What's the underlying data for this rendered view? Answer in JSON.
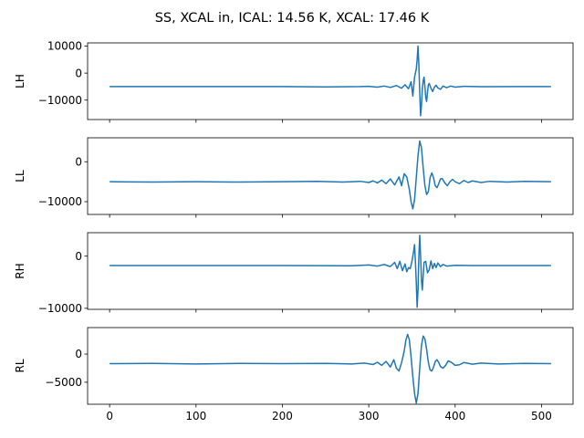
{
  "title": "SS, XCAL in, ICAL: 14.56 K, XCAL: 17.46 K",
  "colors": {
    "line": "#1f77b4",
    "axes": "#000000",
    "background": "#ffffff"
  },
  "chart_data": [
    {
      "type": "line",
      "ylabel": "LH",
      "x_range": [
        0,
        511
      ],
      "xticks": [
        0,
        100,
        200,
        300,
        400,
        500
      ],
      "ylim": [
        -17200,
        11200
      ],
      "yticks": [
        -10000,
        0,
        10000
      ],
      "ytick_labels": [
        "−10000",
        "0",
        "10000"
      ],
      "xtick_labels_shown": false,
      "series": [
        {
          "baseline": -5000,
          "envelope_center": 358,
          "points": [
            [
              0,
              -5000
            ],
            [
              100,
              -5000
            ],
            [
              200,
              -5000
            ],
            [
              250,
              -5100
            ],
            [
              290,
              -5000
            ],
            [
              300,
              -4900
            ],
            [
              310,
              -5200
            ],
            [
              318,
              -4800
            ],
            [
              325,
              -5300
            ],
            [
              332,
              -4600
            ],
            [
              338,
              -5600
            ],
            [
              342,
              -4300
            ],
            [
              346,
              -5800
            ],
            [
              349,
              -3200
            ],
            [
              351,
              -8500
            ],
            [
              353,
              -1500
            ],
            [
              355,
              1500
            ],
            [
              356,
              5000
            ],
            [
              357,
              10000
            ],
            [
              358,
              3000
            ],
            [
              359,
              -7000
            ],
            [
              360,
              -15800
            ],
            [
              361,
              -12000
            ],
            [
              362,
              -6000
            ],
            [
              363,
              -2800
            ],
            [
              364,
              -1500
            ],
            [
              365,
              -5000
            ],
            [
              366,
              -9000
            ],
            [
              367,
              -10500
            ],
            [
              368,
              -7000
            ],
            [
              369,
              -4300
            ],
            [
              370,
              -3800
            ],
            [
              372,
              -5600
            ],
            [
              374,
              -6800
            ],
            [
              376,
              -5200
            ],
            [
              378,
              -4500
            ],
            [
              380,
              -5500
            ],
            [
              383,
              -6000
            ],
            [
              386,
              -4800
            ],
            [
              390,
              -5400
            ],
            [
              395,
              -4800
            ],
            [
              400,
              -5200
            ],
            [
              410,
              -4900
            ],
            [
              430,
              -5050
            ],
            [
              470,
              -5000
            ],
            [
              511,
              -5000
            ]
          ]
        }
      ]
    },
    {
      "type": "line",
      "ylabel": "LL",
      "x_range": [
        0,
        511
      ],
      "xticks": [
        0,
        100,
        200,
        300,
        400,
        500
      ],
      "ylim": [
        -13200,
        6000
      ],
      "yticks": [
        -10000,
        0
      ],
      "ytick_labels": [
        "−10000",
        "0"
      ],
      "xtick_labels_shown": false,
      "series": [
        {
          "baseline": -5000,
          "envelope_center": 358,
          "points": [
            [
              0,
              -5000
            ],
            [
              50,
              -5100
            ],
            [
              100,
              -5000
            ],
            [
              150,
              -5100
            ],
            [
              200,
              -5000
            ],
            [
              240,
              -4900
            ],
            [
              270,
              -5100
            ],
            [
              290,
              -4900
            ],
            [
              300,
              -5200
            ],
            [
              305,
              -4800
            ],
            [
              310,
              -5300
            ],
            [
              315,
              -4600
            ],
            [
              320,
              -5500
            ],
            [
              325,
              -4300
            ],
            [
              330,
              -5800
            ],
            [
              335,
              -3800
            ],
            [
              338,
              -6000
            ],
            [
              341,
              -3000
            ],
            [
              344,
              -3800
            ],
            [
              347,
              -7000
            ],
            [
              349,
              -10000
            ],
            [
              351,
              -11800
            ],
            [
              353,
              -9500
            ],
            [
              355,
              -4000
            ],
            [
              357,
              1500
            ],
            [
              359,
              5200
            ],
            [
              361,
              3500
            ],
            [
              363,
              -1500
            ],
            [
              365,
              -6000
            ],
            [
              367,
              -8200
            ],
            [
              369,
              -7500
            ],
            [
              371,
              -4000
            ],
            [
              373,
              -2800
            ],
            [
              375,
              -4000
            ],
            [
              377,
              -6000
            ],
            [
              379,
              -6500
            ],
            [
              381,
              -5500
            ],
            [
              383,
              -4300
            ],
            [
              385,
              -4200
            ],
            [
              388,
              -5300
            ],
            [
              391,
              -6000
            ],
            [
              394,
              -5000
            ],
            [
              397,
              -4400
            ],
            [
              400,
              -5000
            ],
            [
              405,
              -5500
            ],
            [
              410,
              -4700
            ],
            [
              415,
              -5200
            ],
            [
              420,
              -4800
            ],
            [
              430,
              -5200
            ],
            [
              440,
              -4900
            ],
            [
              460,
              -5100
            ],
            [
              480,
              -4900
            ],
            [
              511,
              -5000
            ]
          ]
        }
      ]
    },
    {
      "type": "line",
      "ylabel": "RH",
      "x_range": [
        0,
        511
      ],
      "xticks": [
        0,
        100,
        200,
        300,
        400,
        500
      ],
      "ylim": [
        -10200,
        4500
      ],
      "yticks": [
        -10000,
        0
      ],
      "ytick_labels": [
        "−10000",
        "0"
      ],
      "xtick_labels_shown": false,
      "series": [
        {
          "baseline": -1800,
          "envelope_center": 358,
          "points": [
            [
              0,
              -1800
            ],
            [
              100,
              -1800
            ],
            [
              200,
              -1800
            ],
            [
              280,
              -1850
            ],
            [
              300,
              -1700
            ],
            [
              310,
              -1900
            ],
            [
              318,
              -1600
            ],
            [
              325,
              -2000
            ],
            [
              330,
              -1200
            ],
            [
              333,
              -2400
            ],
            [
              336,
              -1000
            ],
            [
              339,
              -2800
            ],
            [
              342,
              -1500
            ],
            [
              344,
              -3000
            ],
            [
              346,
              -2200
            ],
            [
              348,
              -2400
            ],
            [
              350,
              -1000
            ],
            [
              352,
              1000
            ],
            [
              353,
              2200
            ],
            [
              354,
              -1000
            ],
            [
              355,
              -5000
            ],
            [
              356,
              -9800
            ],
            [
              357,
              -6500
            ],
            [
              358,
              0
            ],
            [
              359,
              4000
            ],
            [
              360,
              0
            ],
            [
              361,
              -4500
            ],
            [
              362,
              -6500
            ],
            [
              363,
              -3800
            ],
            [
              364,
              -1200
            ],
            [
              366,
              -1000
            ],
            [
              368,
              -3200
            ],
            [
              370,
              -2600
            ],
            [
              372,
              -900
            ],
            [
              374,
              -2400
            ],
            [
              376,
              -1400
            ],
            [
              378,
              -2200
            ],
            [
              380,
              -1300
            ],
            [
              383,
              -2000
            ],
            [
              386,
              -1600
            ],
            [
              390,
              -1900
            ],
            [
              400,
              -1750
            ],
            [
              420,
              -1800
            ],
            [
              470,
              -1800
            ],
            [
              511,
              -1800
            ]
          ]
        }
      ]
    },
    {
      "type": "line",
      "ylabel": "RL",
      "x_range": [
        0,
        511
      ],
      "xticks": [
        0,
        100,
        200,
        300,
        400,
        500
      ],
      "ylim": [
        -8900,
        4700
      ],
      "yticks": [
        -5000,
        0
      ],
      "ytick_labels": [
        "−5000",
        "0"
      ],
      "xtick_labels_shown": true,
      "xtick_labels": [
        "0",
        "100",
        "200",
        "300",
        "400",
        "500"
      ],
      "series": [
        {
          "baseline": -1700,
          "envelope_center": 358,
          "points": [
            [
              0,
              -1700
            ],
            [
              50,
              -1650
            ],
            [
              100,
              -1750
            ],
            [
              150,
              -1650
            ],
            [
              200,
              -1700
            ],
            [
              250,
              -1650
            ],
            [
              280,
              -1750
            ],
            [
              295,
              -1600
            ],
            [
              305,
              -1850
            ],
            [
              310,
              -1450
            ],
            [
              315,
              -2000
            ],
            [
              320,
              -1300
            ],
            [
              325,
              -2300
            ],
            [
              329,
              -1000
            ],
            [
              332,
              -2500
            ],
            [
              335,
              -3000
            ],
            [
              338,
              -1500
            ],
            [
              341,
              500
            ],
            [
              343,
              2500
            ],
            [
              345,
              3500
            ],
            [
              347,
              2500
            ],
            [
              349,
              -500
            ],
            [
              351,
              -4000
            ],
            [
              353,
              -7000
            ],
            [
              355,
              -8700
            ],
            [
              357,
              -7000
            ],
            [
              359,
              -2500
            ],
            [
              361,
              1500
            ],
            [
              363,
              3200
            ],
            [
              365,
              2700
            ],
            [
              367,
              800
            ],
            [
              369,
              -1500
            ],
            [
              371,
              -2800
            ],
            [
              373,
              -3000
            ],
            [
              375,
              -2300
            ],
            [
              377,
              -1300
            ],
            [
              379,
              -1000
            ],
            [
              381,
              -1500
            ],
            [
              383,
              -2200
            ],
            [
              386,
              -2500
            ],
            [
              389,
              -2000
            ],
            [
              392,
              -1200
            ],
            [
              396,
              -1500
            ],
            [
              400,
              -2000
            ],
            [
              405,
              -1900
            ],
            [
              410,
              -1500
            ],
            [
              420,
              -1800
            ],
            [
              430,
              -1600
            ],
            [
              450,
              -1750
            ],
            [
              480,
              -1650
            ],
            [
              511,
              -1700
            ]
          ]
        }
      ]
    }
  ]
}
